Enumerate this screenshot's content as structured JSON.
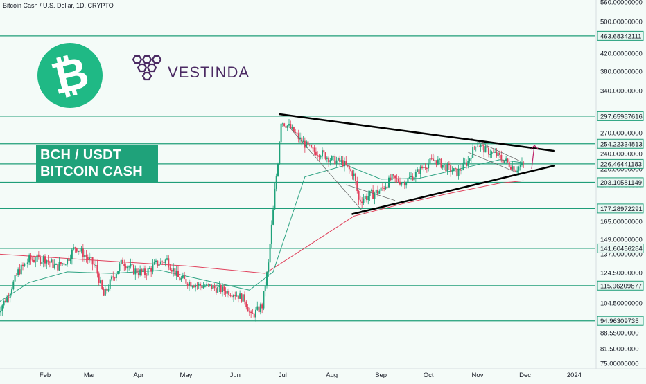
{
  "header": {
    "symbol_line": "Bitcoin Cash / U.S. Dollar, 1D, CRYPTO"
  },
  "title": {
    "line1": "BCH / USDT",
    "line2": "BITCOIN CASH"
  },
  "brand": {
    "name": "VESTINDA",
    "coin_symbol": "₿"
  },
  "colors": {
    "background": "#f4fbf8",
    "level_line": "#1f9e79",
    "tag_bg": "#e9f7f2",
    "up_candle": "#1fa27a",
    "down_candle": "#e0415c",
    "ema_short": "#2ea383",
    "ema_long": "#e0415c",
    "trendline": "#000000",
    "arrow": "#c0266b"
  },
  "chart_data": {
    "type": "line",
    "ylabel_ticks": [
      "560.00000000",
      "500.00000000",
      "420.00000000",
      "380.00000000",
      "340.00000000",
      "270.00000000",
      "240.00000000",
      "220.00000000",
      "200.00000000",
      "165.00000000",
      "149.00000000",
      "137.00000000",
      "124.50000000",
      "104.50000000",
      "88.55000000",
      "81.50000000",
      "75.00000000"
    ],
    "y_tick_values": [
      560,
      500,
      420,
      380,
      340,
      270,
      240,
      220,
      200,
      165,
      149,
      137,
      124.5,
      104.5,
      88.55,
      81.5,
      75
    ],
    "x_ticks": [
      "Feb",
      "Mar",
      "Apr",
      "May",
      "Jun",
      "Jul",
      "Aug",
      "Sep",
      "Oct",
      "Nov",
      "Dec",
      "2024"
    ],
    "x_tick_dates": [
      "2023-02-01",
      "2023-03-01",
      "2023-04-01",
      "2023-05-01",
      "2023-06-01",
      "2023-07-01",
      "2023-08-01",
      "2023-09-01",
      "2023-10-01",
      "2023-11-01",
      "2023-12-01",
      "2024-01-01"
    ],
    "levels": [
      {
        "label": "463.68342111",
        "value": 463.68
      },
      {
        "label": "297.65987616",
        "value": 297.66
      },
      {
        "label": "254.22334813",
        "value": 254.22
      },
      {
        "label": "226.46441183",
        "value": 226.46
      },
      {
        "label": "203.10581149",
        "value": 203.11
      },
      {
        "label": "177.28972291",
        "value": 177.29
      },
      {
        "label": "141.60456284",
        "value": 141.6
      },
      {
        "label": "115.96209877",
        "value": 115.96
      },
      {
        "label": "94.96309735",
        "value": 94.96
      }
    ],
    "price_path": [
      {
        "x": "2023-01-01",
        "y": 98
      },
      {
        "x": "2023-01-08",
        "y": 108
      },
      {
        "x": "2023-01-15",
        "y": 125
      },
      {
        "x": "2023-01-22",
        "y": 133
      },
      {
        "x": "2023-02-01",
        "y": 134
      },
      {
        "x": "2023-02-08",
        "y": 128
      },
      {
        "x": "2023-02-15",
        "y": 133
      },
      {
        "x": "2023-02-20",
        "y": 143
      },
      {
        "x": "2023-02-27",
        "y": 135
      },
      {
        "x": "2023-03-05",
        "y": 128
      },
      {
        "x": "2023-03-10",
        "y": 109
      },
      {
        "x": "2023-03-15",
        "y": 120
      },
      {
        "x": "2023-03-22",
        "y": 132
      },
      {
        "x": "2023-03-29",
        "y": 126
      },
      {
        "x": "2023-04-05",
        "y": 124
      },
      {
        "x": "2023-04-12",
        "y": 130
      },
      {
        "x": "2023-04-19",
        "y": 133
      },
      {
        "x": "2023-04-26",
        "y": 121
      },
      {
        "x": "2023-05-03",
        "y": 118
      },
      {
        "x": "2023-05-10",
        "y": 116
      },
      {
        "x": "2023-05-17",
        "y": 115
      },
      {
        "x": "2023-05-24",
        "y": 113
      },
      {
        "x": "2023-05-31",
        "y": 111
      },
      {
        "x": "2023-06-07",
        "y": 107
      },
      {
        "x": "2023-06-11",
        "y": 97
      },
      {
        "x": "2023-06-18",
        "y": 103
      },
      {
        "x": "2023-06-22",
        "y": 130
      },
      {
        "x": "2023-06-25",
        "y": 175
      },
      {
        "x": "2023-06-28",
        "y": 230
      },
      {
        "x": "2023-06-30",
        "y": 290
      },
      {
        "x": "2023-07-05",
        "y": 280
      },
      {
        "x": "2023-07-12",
        "y": 260
      },
      {
        "x": "2023-07-19",
        "y": 245
      },
      {
        "x": "2023-07-26",
        "y": 240
      },
      {
        "x": "2023-08-01",
        "y": 232
      },
      {
        "x": "2023-08-08",
        "y": 228
      },
      {
        "x": "2023-08-15",
        "y": 212
      },
      {
        "x": "2023-08-18",
        "y": 185
      },
      {
        "x": "2023-08-25",
        "y": 190
      },
      {
        "x": "2023-09-01",
        "y": 195
      },
      {
        "x": "2023-09-08",
        "y": 208
      },
      {
        "x": "2023-09-15",
        "y": 203
      },
      {
        "x": "2023-09-22",
        "y": 212
      },
      {
        "x": "2023-09-29",
        "y": 225
      },
      {
        "x": "2023-10-05",
        "y": 232
      },
      {
        "x": "2023-10-12",
        "y": 222
      },
      {
        "x": "2023-10-19",
        "y": 215
      },
      {
        "x": "2023-10-26",
        "y": 230
      },
      {
        "x": "2023-10-31",
        "y": 255
      },
      {
        "x": "2023-11-06",
        "y": 245
      },
      {
        "x": "2023-11-13",
        "y": 238
      },
      {
        "x": "2023-11-20",
        "y": 228
      },
      {
        "x": "2023-11-25",
        "y": 220
      },
      {
        "x": "2023-11-30",
        "y": 226
      }
    ],
    "ema_short_path": [
      {
        "x": "2023-01-01",
        "y": 104
      },
      {
        "x": "2023-01-22",
        "y": 118
      },
      {
        "x": "2023-02-15",
        "y": 125
      },
      {
        "x": "2023-03-15",
        "y": 124
      },
      {
        "x": "2023-04-15",
        "y": 126
      },
      {
        "x": "2023-05-15",
        "y": 119
      },
      {
        "x": "2023-06-10",
        "y": 113
      },
      {
        "x": "2023-06-25",
        "y": 125
      },
      {
        "x": "2023-07-15",
        "y": 210
      },
      {
        "x": "2023-08-10",
        "y": 225
      },
      {
        "x": "2023-09-01",
        "y": 207
      },
      {
        "x": "2023-09-25",
        "y": 208
      },
      {
        "x": "2023-10-25",
        "y": 222
      },
      {
        "x": "2023-11-15",
        "y": 232
      },
      {
        "x": "2023-11-30",
        "y": 228
      }
    ],
    "ema_long_path": [
      {
        "x": "2023-01-01",
        "y": 137
      },
      {
        "x": "2023-03-01",
        "y": 133
      },
      {
        "x": "2023-05-01",
        "y": 129
      },
      {
        "x": "2023-06-20",
        "y": 124
      },
      {
        "x": "2023-07-15",
        "y": 142
      },
      {
        "x": "2023-08-15",
        "y": 170
      },
      {
        "x": "2023-09-15",
        "y": 182
      },
      {
        "x": "2023-10-15",
        "y": 192
      },
      {
        "x": "2023-11-15",
        "y": 202
      },
      {
        "x": "2023-11-30",
        "y": 205
      }
    ],
    "trendlines": [
      {
        "name": "upper",
        "from": {
          "x": "2023-06-29",
          "y": 301
        },
        "to": {
          "x": "2023-12-19",
          "y": 244
        }
      },
      {
        "name": "lower",
        "from": {
          "x": "2023-08-14",
          "y": 172
        },
        "to": {
          "x": "2023-12-19",
          "y": 224
        }
      }
    ],
    "grid": false,
    "legend": "none"
  }
}
